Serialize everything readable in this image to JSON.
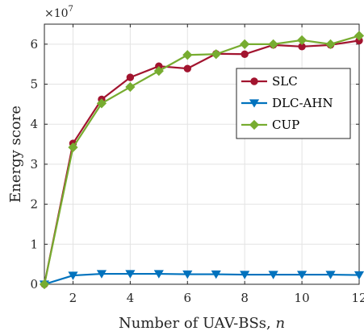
{
  "chart_data": {
    "type": "line",
    "xlabel_text": "Number of UAV-BSs, ",
    "xlabel_var": "n",
    "ylabel": "Energy score",
    "y_multiplier_base": "×10",
    "y_multiplier_exp": "7",
    "xlim": [
      1,
      12
    ],
    "ylim": [
      0,
      6.5
    ],
    "xticks": [
      2,
      4,
      6,
      8,
      10,
      12
    ],
    "yticks": [
      0,
      1,
      2,
      3,
      4,
      5,
      6
    ],
    "grid": true,
    "legend_position": "right",
    "x": [
      1,
      2,
      3,
      4,
      5,
      6,
      7,
      8,
      9,
      10,
      11,
      12
    ],
    "series": [
      {
        "name": "SLC",
        "color": "#a2142f",
        "marker": "circle",
        "values": [
          0,
          3.52,
          4.62,
          5.17,
          5.45,
          5.39,
          5.76,
          5.75,
          5.98,
          5.94,
          5.98,
          6.09
        ]
      },
      {
        "name": "DLC-AHN",
        "color": "#0072bd",
        "marker": "triangle-down",
        "values": [
          0,
          0.22,
          0.26,
          0.26,
          0.26,
          0.25,
          0.25,
          0.24,
          0.24,
          0.24,
          0.24,
          0.23
        ]
      },
      {
        "name": "CUP",
        "color": "#77ac30",
        "marker": "diamond",
        "values": [
          0,
          3.42,
          4.52,
          4.93,
          5.33,
          5.73,
          5.75,
          6.0,
          6.0,
          6.1,
          6.0,
          6.21
        ]
      }
    ]
  }
}
